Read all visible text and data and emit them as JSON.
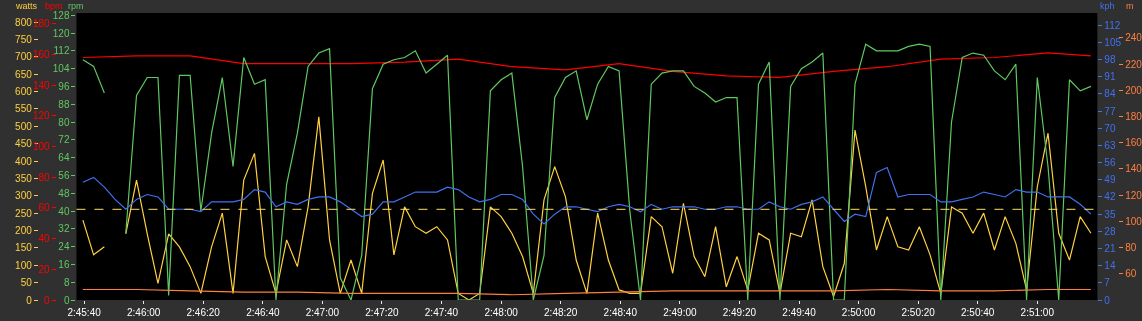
{
  "chart_data": [
    {
      "type": "line",
      "grid": false,
      "x": [
        2.761,
        2.762,
        2.763,
        2.764,
        2.765,
        2.766,
        2.767,
        2.768,
        2.769,
        2.77,
        2.771,
        2.772,
        2.773,
        2.774,
        2.775,
        2.776,
        2.777,
        2.778,
        2.779,
        2.78,
        2.781,
        2.782,
        2.783,
        2.784,
        2.785,
        2.786,
        2.787,
        2.788,
        2.789,
        2.79,
        2.791,
        2.792,
        2.793,
        2.794,
        2.795,
        2.796,
        2.797,
        2.798,
        2.799,
        2.8,
        2.801,
        2.802,
        2.803,
        2.804,
        2.805,
        2.806,
        2.807,
        2.808,
        2.809,
        2.81,
        2.811,
        2.812,
        2.813,
        2.814,
        2.815,
        2.816,
        2.817,
        2.818,
        2.819,
        2.82,
        2.821,
        2.822,
        2.823,
        2.824,
        2.825,
        2.826,
        2.827,
        2.828,
        2.829,
        2.83,
        2.831,
        2.832,
        2.833,
        2.834,
        2.835,
        2.836,
        2.837,
        2.838,
        2.839,
        2.84,
        2.841,
        2.842,
        2.843,
        2.844,
        2.845,
        2.846,
        2.847,
        2.848,
        2.849,
        2.85,
        2.851,
        2.852,
        2.853,
        2.854,
        2.855
      ],
      "xlim": [
        2.7604,
        2.8556
      ],
      "xticks": [
        {
          "value": 2.76111,
          "label": "2:45:40"
        },
        {
          "value": 2.76667,
          "label": "2:46:00"
        },
        {
          "value": 2.77222,
          "label": "2:46:20"
        },
        {
          "value": 2.77778,
          "label": "2:46:40"
        },
        {
          "value": 2.78333,
          "label": "2:47:00"
        },
        {
          "value": 2.78889,
          "label": "2:47:20"
        },
        {
          "value": 2.79444,
          "label": "2:47:40"
        },
        {
          "value": 2.8,
          "label": "2:48:00"
        },
        {
          "value": 2.80556,
          "label": "2:48:20"
        },
        {
          "value": 2.81111,
          "label": "2:48:40"
        },
        {
          "value": 2.81667,
          "label": "2:49:00"
        },
        {
          "value": 2.82222,
          "label": "2:49:20"
        },
        {
          "value": 2.82778,
          "label": "2:49:40"
        },
        {
          "value": 2.83333,
          "label": "2:50:00"
        },
        {
          "value": 2.83889,
          "label": "2:50:20"
        },
        {
          "value": 2.84444,
          "label": "2:50:40"
        },
        {
          "value": 2.85,
          "label": "2:51:00"
        }
      ],
      "ylabel": "watts",
      "ylim": [
        0,
        826
      ],
      "yticks": [
        0,
        50,
        100,
        150,
        200,
        250,
        300,
        350,
        400,
        450,
        500,
        550,
        600,
        650,
        700,
        750,
        800
      ],
      "y2label": "bpm",
      "y2lim": [
        0,
        187
      ],
      "y2ticks": [
        0,
        20,
        40,
        60,
        80,
        100,
        120,
        140,
        160,
        180
      ],
      "y3label": "rpm",
      "y3lim": [
        0,
        129
      ],
      "y3ticks": [
        0,
        8,
        16,
        24,
        32,
        40,
        48,
        56,
        64,
        72,
        80,
        88,
        96,
        104,
        112,
        120,
        128
      ],
      "ref_lines": [
        {
          "axis": "y",
          "value": 261,
          "color": "#ffe060",
          "line_style": "dashed"
        }
      ],
      "series": [
        {
          "color": "#ffd040",
          "values": [
            230,
            130,
            153,
            null,
            190,
            345,
            190,
            48,
            190,
            153,
            96,
            19,
            153,
            250,
            19,
            345,
            422,
            125,
            19,
            173,
            96,
            268,
            527,
            173,
            19,
            115,
            19,
            307,
            403,
            130,
            268,
            211,
            192,
            211,
            173,
            19,
            0,
            19,
            268,
            240,
            192,
            125,
            19,
            288,
            384,
            297,
            115,
            19,
            250,
            115,
            29,
            19,
            19,
            240,
            211,
            77,
            278,
            125,
            67,
            211,
            38,
            125,
            29,
            192,
            173,
            19,
            192,
            182,
            288,
            96,
            10,
            105,
            489,
            326,
            144,
            240,
            153,
            144,
            211,
            130,
            19,
            268,
            250,
            192,
            250,
            144,
            240,
            163,
            29,
            326,
            480,
            192,
            115,
            240,
            192
          ]
        },
        {
          "axis": "y2",
          "color": "#ff0000",
          "x": [
            2.761,
            2.766,
            2.771,
            2.776,
            2.781,
            2.786,
            2.791,
            2.796,
            2.801,
            2.806,
            2.811,
            2.816,
            2.821,
            2.826,
            2.831,
            2.836,
            2.841,
            2.846,
            2.851,
            2.855
          ],
          "values": [
            158,
            159,
            159,
            154,
            154,
            154,
            155,
            157,
            152,
            150,
            154,
            149,
            146,
            145,
            149,
            152,
            157,
            158,
            161,
            159
          ]
        },
        {
          "axis": "y3",
          "color": "#60c860",
          "values": [
            108,
            105,
            93,
            null,
            30,
            92,
            100,
            100,
            2,
            101,
            101,
            40,
            75,
            100,
            60,
            109,
            97,
            99,
            0,
            52,
            75,
            105,
            111,
            113,
            10,
            0,
            20,
            95,
            106,
            108,
            109,
            112,
            102,
            106,
            110,
            0,
            0,
            0,
            94,
            99,
            102,
            60,
            0,
            20,
            91,
            100,
            103,
            81,
            97,
            105,
            103,
            40,
            0,
            97,
            102,
            103,
            103,
            96,
            93,
            89,
            91,
            91,
            0,
            97,
            107,
            0,
            96,
            104,
            107,
            111,
            0,
            0,
            97,
            115,
            112,
            112,
            112,
            114,
            115,
            114,
            0,
            80,
            109,
            111,
            110,
            103,
            99,
            106,
            0,
            100,
            60,
            0,
            99,
            94,
            96
          ]
        }
      ]
    },
    {
      "type": "line",
      "grid": false,
      "tick_labels": "y",
      "x": [
        2.761,
        2.762,
        2.763,
        2.764,
        2.765,
        2.766,
        2.767,
        2.768,
        2.769,
        2.77,
        2.771,
        2.772,
        2.773,
        2.774,
        2.775,
        2.776,
        2.777,
        2.778,
        2.779,
        2.78,
        2.781,
        2.782,
        2.783,
        2.784,
        2.785,
        2.786,
        2.787,
        2.788,
        2.789,
        2.79,
        2.791,
        2.792,
        2.793,
        2.794,
        2.795,
        2.796,
        2.797,
        2.798,
        2.799,
        2.8,
        2.801,
        2.802,
        2.803,
        2.804,
        2.805,
        2.806,
        2.807,
        2.808,
        2.809,
        2.81,
        2.811,
        2.812,
        2.813,
        2.814,
        2.815,
        2.816,
        2.817,
        2.818,
        2.819,
        2.82,
        2.821,
        2.822,
        2.823,
        2.824,
        2.825,
        2.826,
        2.827,
        2.828,
        2.829,
        2.83,
        2.831,
        2.832,
        2.833,
        2.834,
        2.835,
        2.836,
        2.837,
        2.838,
        2.839,
        2.84,
        2.841,
        2.842,
        2.843,
        2.844,
        2.845,
        2.846,
        2.847,
        2.848,
        2.849,
        2.85,
        2.851,
        2.852,
        2.853,
        2.854,
        2.855
      ],
      "xlim": [
        2.7604,
        2.8556
      ],
      "ylabel": "kph",
      "ylim": [
        0,
        117
      ],
      "yticks": [
        0,
        7,
        14,
        21,
        28,
        35,
        42,
        49,
        56,
        63,
        70,
        77,
        84,
        91,
        98,
        105,
        112
      ],
      "y2label": "m",
      "y2lim": [
        40,
        259
      ],
      "y2ticks": [
        60,
        80,
        100,
        120,
        140,
        160,
        180,
        200,
        220,
        240
      ],
      "series": [
        {
          "color": "#4070f0",
          "values": [
            48,
            50,
            46,
            41,
            37,
            41,
            43,
            42,
            37,
            37,
            37,
            36,
            40,
            40,
            40,
            41,
            45,
            44,
            38,
            40,
            39,
            41,
            42,
            42,
            40,
            37,
            34,
            35,
            40,
            40,
            42,
            44,
            44,
            44,
            46,
            45,
            42,
            40,
            41,
            43,
            43,
            41,
            35,
            31,
            35,
            38,
            38,
            37,
            36,
            38,
            39,
            38,
            36,
            39,
            37,
            38,
            38,
            38,
            37,
            37,
            38,
            38,
            37,
            37,
            40,
            38,
            37,
            39,
            40,
            42,
            37,
            32,
            35,
            34,
            52,
            54,
            42,
            43,
            43,
            43,
            40,
            40,
            41,
            42,
            44,
            43,
            42,
            45,
            44,
            44,
            42,
            42,
            42,
            39,
            35
          ]
        },
        {
          "axis": "y2",
          "color": "#ff7f3f",
          "x": [
            2.761,
            2.766,
            2.771,
            2.776,
            2.781,
            2.786,
            2.791,
            2.796,
            2.801,
            2.806,
            2.811,
            2.816,
            2.821,
            2.826,
            2.831,
            2.836,
            2.841,
            2.846,
            2.851,
            2.855
          ],
          "values": [
            48,
            48,
            47,
            46,
            46,
            45,
            45,
            45,
            44,
            45,
            46,
            47,
            47,
            47,
            47,
            48,
            47,
            47,
            48,
            48
          ]
        }
      ]
    }
  ]
}
